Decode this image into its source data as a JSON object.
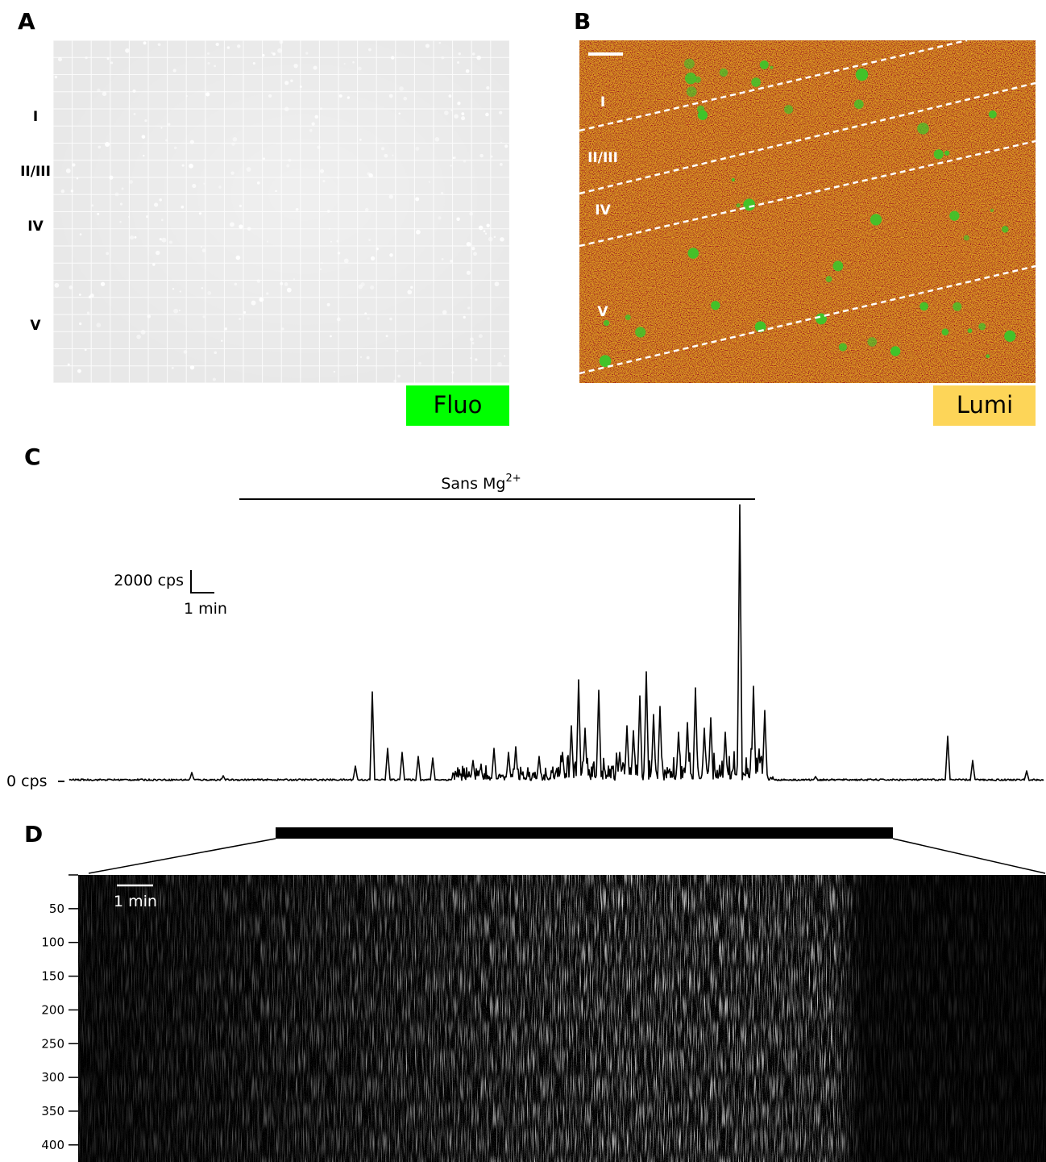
{
  "panels": [
    {
      "label": "A",
      "layers": [
        "I",
        "II/III",
        "IV",
        "V"
      ],
      "tag": "Fluo"
    },
    {
      "label": "B",
      "layers": [
        "I",
        "II/III",
        "IV",
        "V"
      ],
      "tag": "Lumi"
    },
    {
      "label": "C",
      "condition": "Sans Mg",
      "condition_sup": "2+",
      "scale_y": "2000 cps",
      "scale_x": "1 min",
      "baseline": "0 cps"
    },
    {
      "label": "D",
      "scale_x": "1 min",
      "yticks": [
        50,
        100,
        150,
        200,
        250,
        300,
        350,
        400
      ]
    }
  ]
}
